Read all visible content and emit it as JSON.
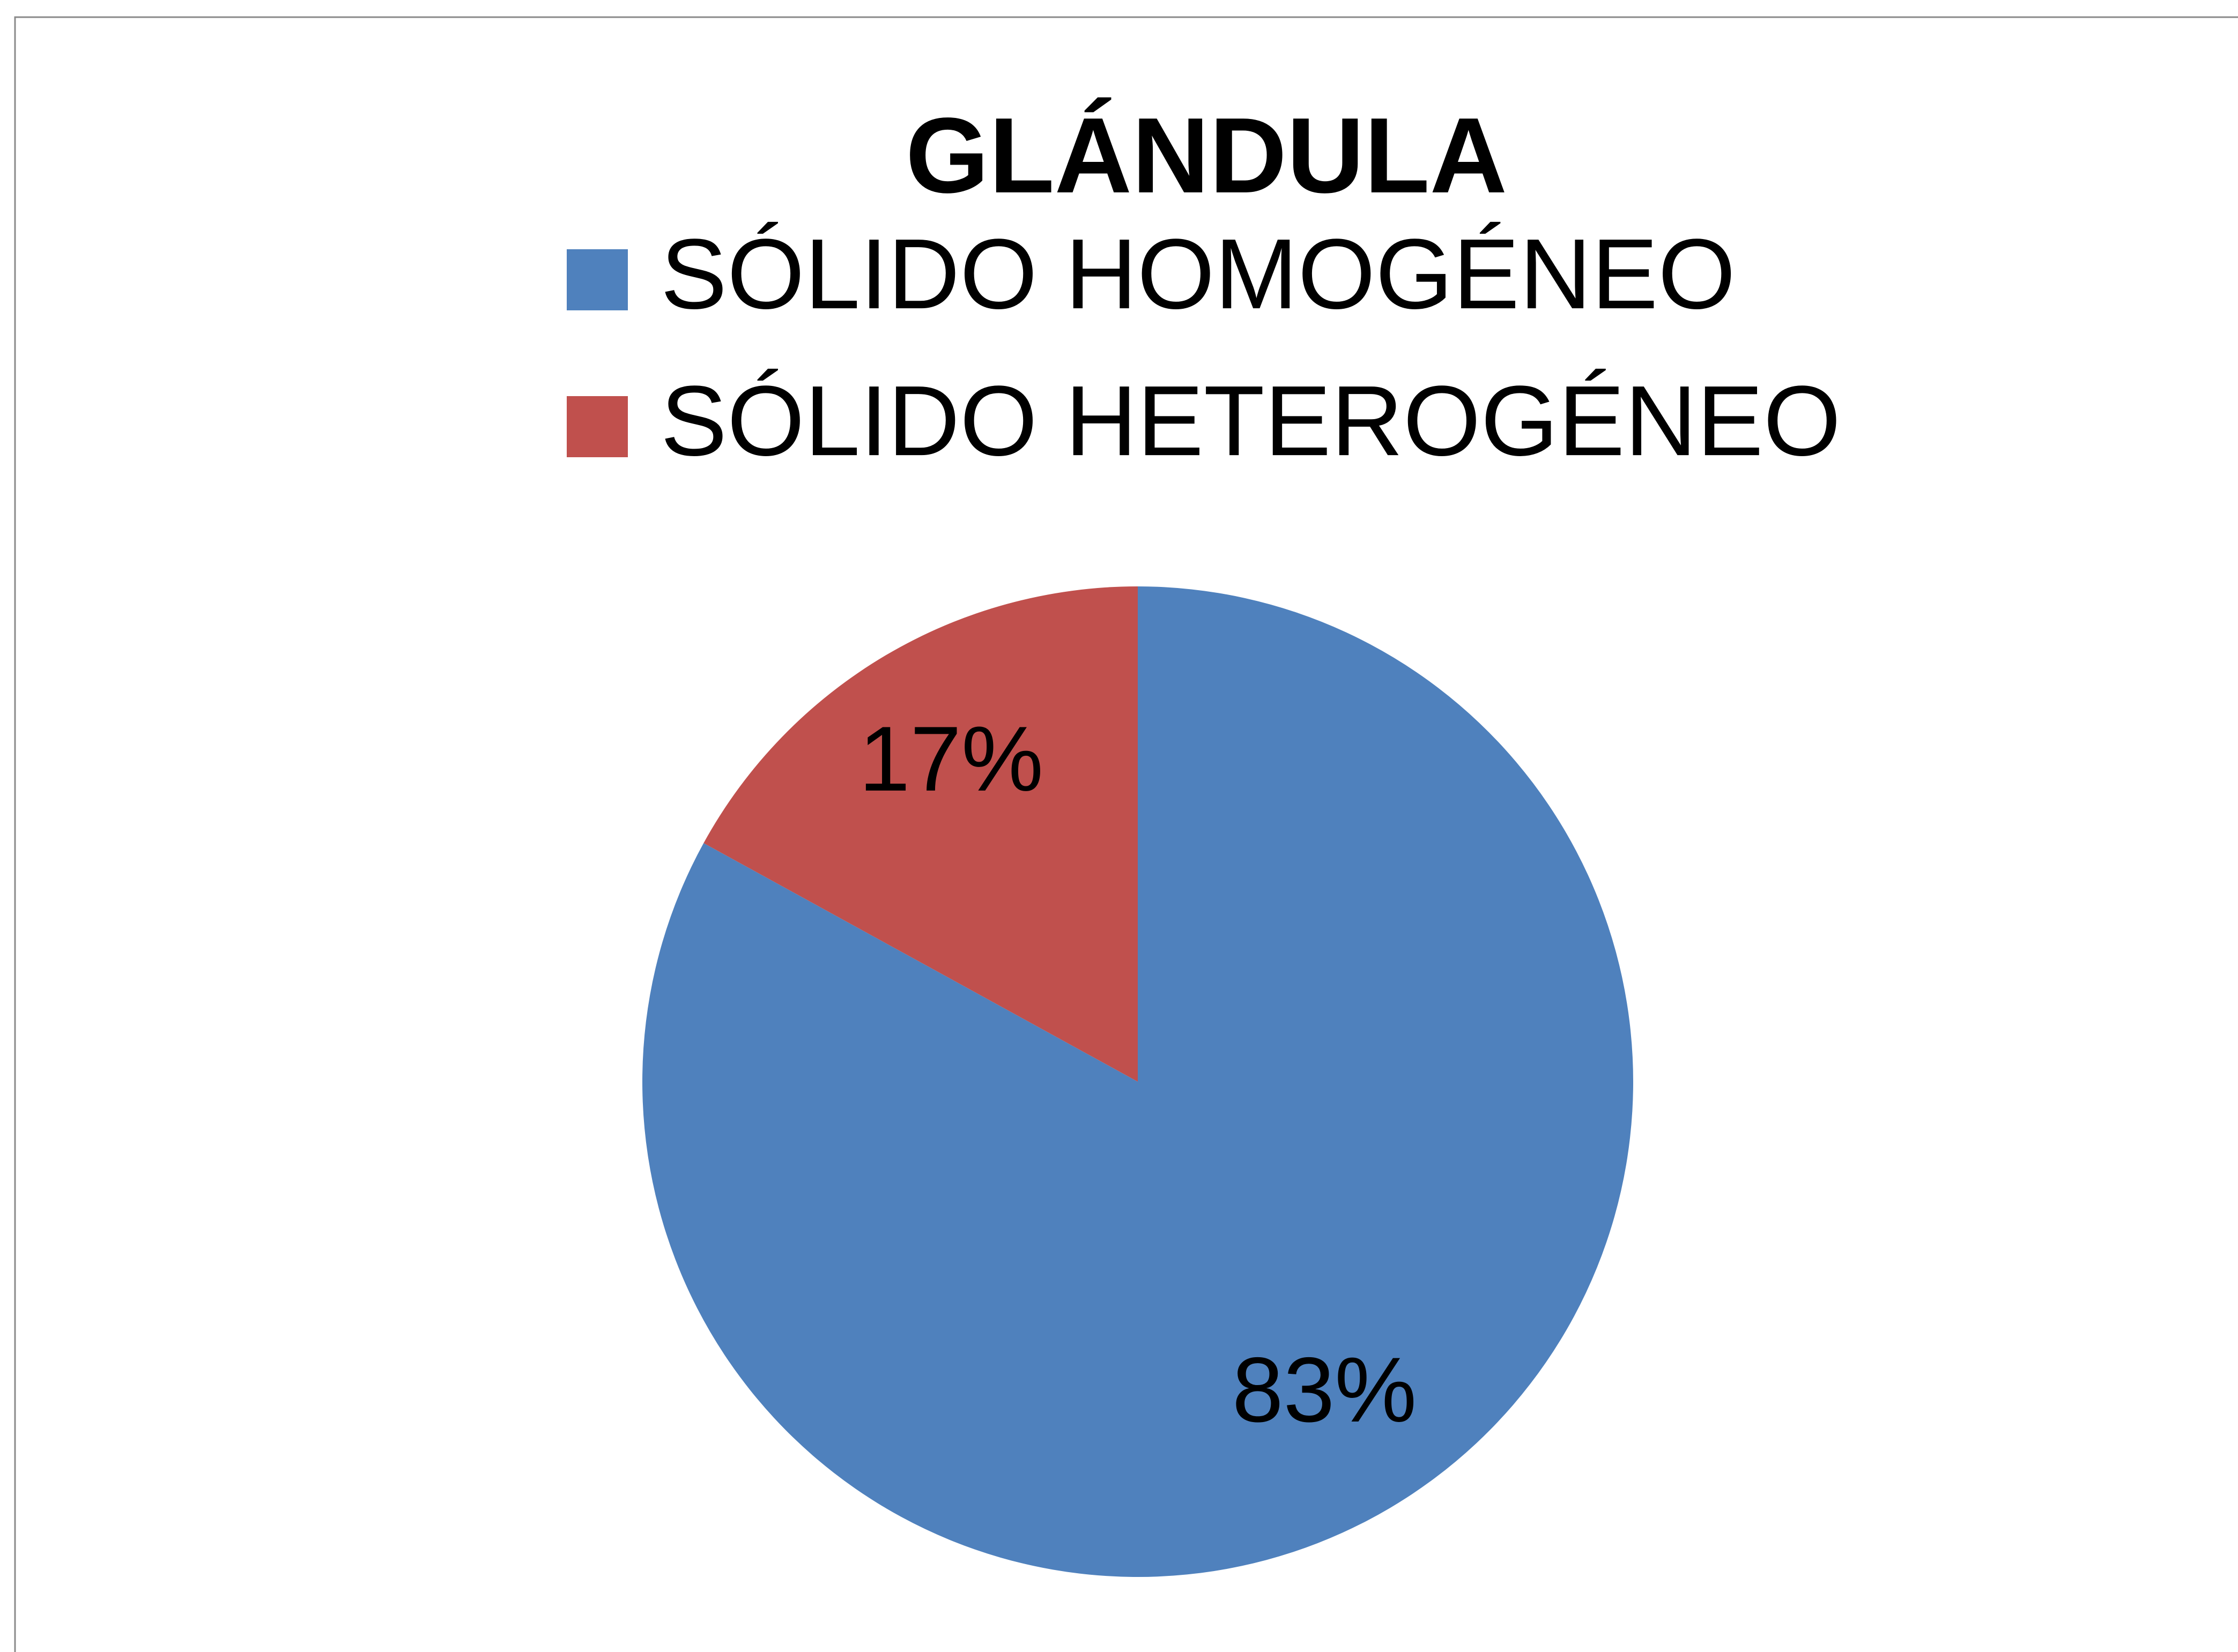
{
  "chart_data": {
    "type": "pie",
    "title": "GLÁNDULA",
    "categories": [
      "SÓLIDO HOMOGÉNEO",
      "SÓLIDO HETEROGÉNEO"
    ],
    "values": [
      83,
      17
    ],
    "value_labels": [
      "83%",
      "17%"
    ],
    "colors": [
      "#4f81bd",
      "#c0504d"
    ],
    "legend": "top"
  }
}
